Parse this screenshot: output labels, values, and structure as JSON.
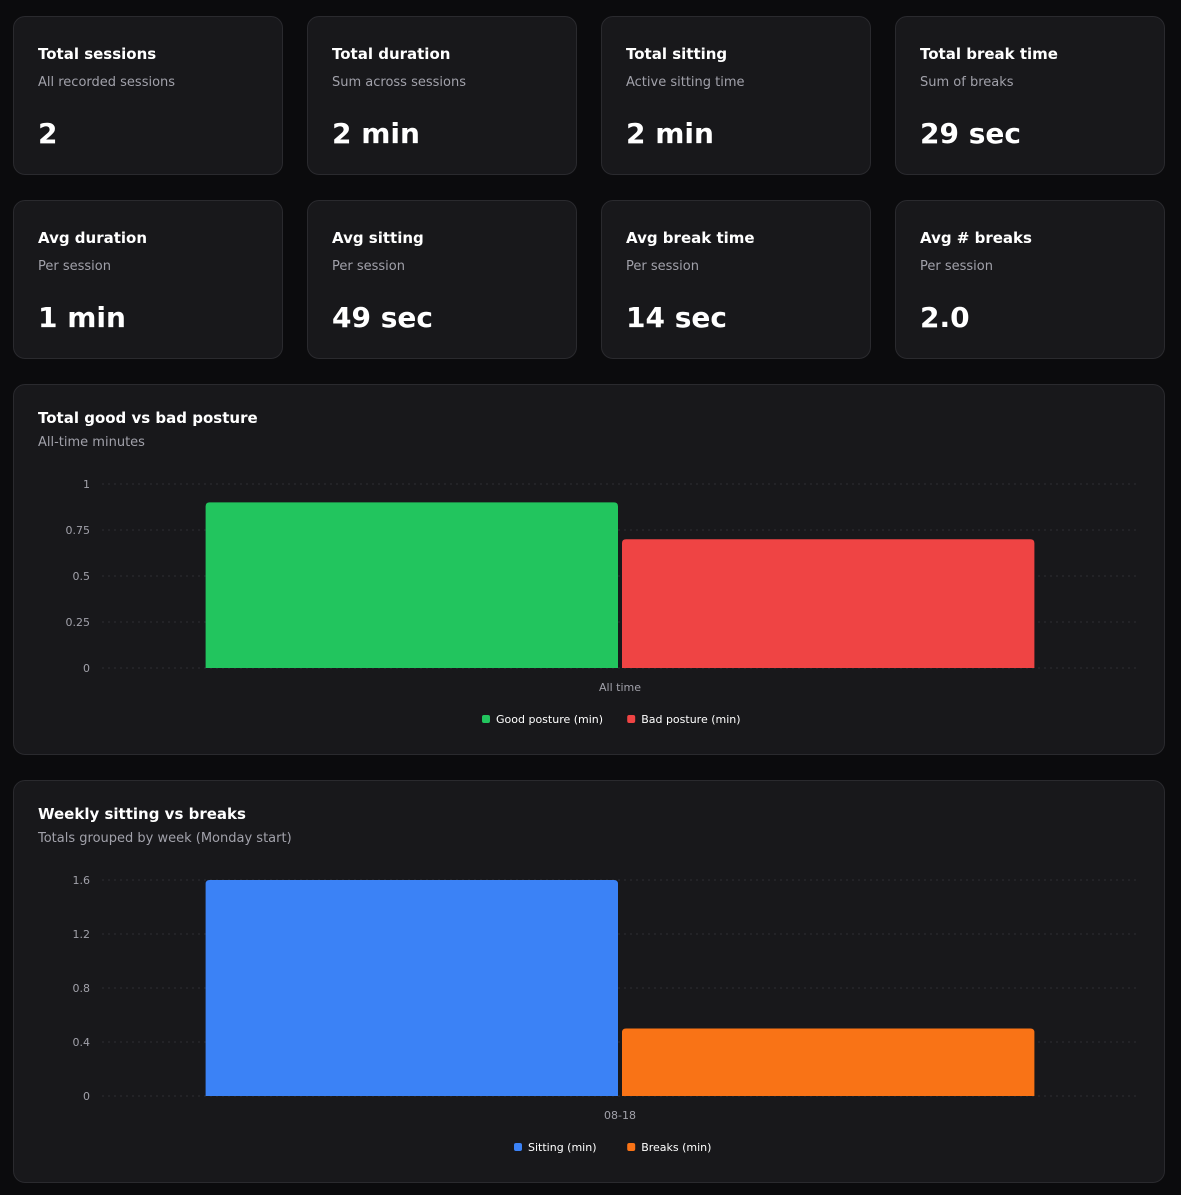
{
  "stats": [
    {
      "title": "Total sessions",
      "subtitle": "All recorded sessions",
      "value": "2"
    },
    {
      "title": "Total duration",
      "subtitle": "Sum across sessions",
      "value": "2 min"
    },
    {
      "title": "Total sitting",
      "subtitle": "Active sitting time",
      "value": "2 min"
    },
    {
      "title": "Total break time",
      "subtitle": "Sum of breaks",
      "value": "29 sec"
    },
    {
      "title": "Avg duration",
      "subtitle": "Per session",
      "value": "1 min"
    },
    {
      "title": "Avg sitting",
      "subtitle": "Per session",
      "value": "49 sec"
    },
    {
      "title": "Avg break time",
      "subtitle": "Per session",
      "value": "14 sec"
    },
    {
      "title": "Avg # breaks",
      "subtitle": "Per session",
      "value": "2.0"
    }
  ],
  "chart_data": [
    {
      "type": "bar",
      "title": "Total good vs bad posture",
      "subtitle": "All-time minutes",
      "categories": [
        "All time"
      ],
      "series": [
        {
          "name": "Good posture (min)",
          "color": "#22c55e",
          "values": [
            0.9
          ]
        },
        {
          "name": "Bad posture (min)",
          "color": "#ef4444",
          "values": [
            0.7
          ]
        }
      ],
      "ylim": [
        0,
        1
      ],
      "yticks": [
        "0",
        "0.25",
        "0.5",
        "0.75",
        "1"
      ],
      "ytick_values": [
        0,
        0.25,
        0.5,
        0.75,
        1
      ],
      "grid": true,
      "legend": "bottom"
    },
    {
      "type": "bar",
      "title": "Weekly sitting vs breaks",
      "subtitle": "Totals grouped by week (Monday start)",
      "categories": [
        "08-18"
      ],
      "series": [
        {
          "name": "Sitting (min)",
          "color": "#3b82f6",
          "values": [
            1.6
          ]
        },
        {
          "name": "Breaks (min)",
          "color": "#f97316",
          "values": [
            0.5
          ]
        }
      ],
      "ylim": [
        0,
        1.6
      ],
      "yticks": [
        "0",
        "0.4",
        "0.8",
        "1.2",
        "1.6"
      ],
      "ytick_values": [
        0,
        0.4,
        0.8,
        1.2,
        1.6
      ],
      "grid": true,
      "legend": "bottom"
    }
  ]
}
